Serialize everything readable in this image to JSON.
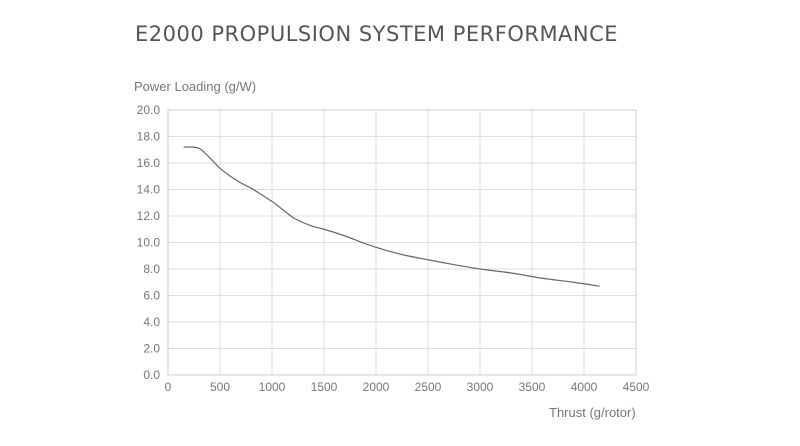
{
  "chart_data": {
    "type": "line",
    "title": "E2000 PROPULSION SYSTEM PERFORMANCE",
    "xlabel": "Thrust (g/rotor)",
    "ylabel": "Power Loading (g/W)",
    "xlim": [
      0,
      4500
    ],
    "ylim": [
      0,
      20
    ],
    "xticks": [
      0,
      500,
      1000,
      1500,
      2000,
      2500,
      3000,
      3500,
      4000,
      4500
    ],
    "yticks": [
      "0.0",
      "2.0",
      "4.0",
      "6.0",
      "8.0",
      "10.0",
      "12.0",
      "14.0",
      "16.0",
      "18.0",
      "20.0"
    ],
    "grid": true,
    "series": [
      {
        "x": [
          150,
          250,
          300,
          350,
          400,
          450,
          500,
          600,
          700,
          800,
          900,
          1000,
          1100,
          1200,
          1300,
          1400,
          1500,
          1700,
          1900,
          2100,
          2300,
          2500,
          2700,
          3000,
          3300,
          3600,
          3900,
          4150
        ],
        "y": [
          17.2,
          17.2,
          17.1,
          16.8,
          16.4,
          16.0,
          15.6,
          15.0,
          14.5,
          14.1,
          13.6,
          13.1,
          12.5,
          11.9,
          11.5,
          11.2,
          11.0,
          10.5,
          9.9,
          9.4,
          9.0,
          8.7,
          8.4,
          8.0,
          7.7,
          7.3,
          7.0,
          6.7
        ],
        "color": "#666666"
      }
    ]
  }
}
